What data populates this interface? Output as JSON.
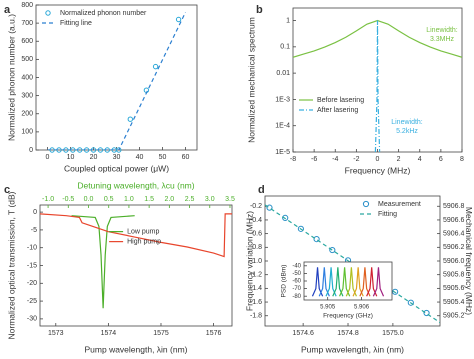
{
  "chart_data": [
    {
      "type": "line",
      "panel": "a",
      "xlabel": "Coupled optical power (μW)",
      "ylabel": "Normalized phonon number (a.u.)",
      "xlim": [
        -5,
        65
      ],
      "xticks": [
        0,
        10,
        20,
        30,
        40,
        50,
        60
      ],
      "ylim": [
        0,
        800
      ],
      "yticks": [
        0,
        100,
        200,
        300,
        400,
        500,
        600,
        700,
        800
      ],
      "legend": "upper left",
      "series": [
        {
          "name": "Normalized phonon number",
          "color": "#29a8d8",
          "style": "markers",
          "x": [
            2,
            5,
            8,
            11,
            14,
            17,
            20,
            23,
            26,
            29,
            31,
            36,
            43,
            47,
            57
          ],
          "values": [
            0,
            0,
            0,
            0,
            0,
            0,
            0,
            0,
            0,
            0,
            0,
            170,
            330,
            460,
            720
          ]
        },
        {
          "name": "Fitting line",
          "color": "#2b7fd0",
          "style": "dashed",
          "x": [
            0,
            31,
            60
          ],
          "values": [
            0,
            0,
            760
          ]
        }
      ]
    },
    {
      "type": "line",
      "panel": "b",
      "xlabel": "Frequency (MHz)",
      "ylabel": "Normalized mechanical spectrum",
      "yscale": "log",
      "xlim": [
        -8,
        8
      ],
      "xticks": [
        -8,
        -6,
        -4,
        -2,
        0,
        2,
        4,
        6,
        8
      ],
      "ylim": [
        1e-05,
        3
      ],
      "yticks": [
        1,
        0.1,
        0.01,
        {
          "value": 0.001,
          "label": "1E-3"
        },
        {
          "value": 0.0001,
          "label": "1E-4"
        },
        {
          "value": 1e-05,
          "label": "1E-5"
        }
      ],
      "legend": "lower left",
      "annotations": [
        [
          "Linewidth:",
          "3.3MHz"
        ],
        [
          "Linewidth:",
          "5.2kHz"
        ]
      ],
      "series": [
        {
          "name": "Before lasering",
          "color": "#7ac143",
          "style": "solid",
          "x": [
            -8,
            -7,
            -6,
            -5,
            -4,
            -3,
            -2,
            -1,
            0,
            1,
            2,
            3,
            4,
            5,
            6,
            7,
            8
          ],
          "values": [
            0.04,
            0.053,
            0.07,
            0.098,
            0.145,
            0.232,
            0.405,
            0.73,
            1,
            0.73,
            0.405,
            0.232,
            0.145,
            0.098,
            0.07,
            0.053,
            0.04
          ]
        },
        {
          "name": "After lasering",
          "color": "#3ab0e0",
          "style": "dashdot",
          "x": [
            -0.2,
            -0.05,
            0,
            0.05,
            0.2
          ],
          "values": [
            1e-05,
            0.001,
            1,
            0.001,
            1e-05
          ]
        }
      ]
    },
    {
      "type": "line",
      "panel": "c",
      "xlabel": "Pump wavelength, λin (nm)",
      "ylabel": "Normalized optical transmission, T (dB)",
      "x2label": "Detuning wavelength, λcu (nm)",
      "x2color": "#4caf2a",
      "xlim": [
        1572.7,
        1576.35
      ],
      "xticks": [
        1573,
        1574,
        1575,
        1576
      ],
      "ylim": [
        -32,
        2
      ],
      "yticks": [
        0,
        -5,
        -10,
        -15,
        -20,
        -25,
        -30
      ],
      "x2lim": [
        -1.2,
        3.55
      ],
      "x2ticks": [
        {
          "value": -1,
          "label": "-1.0"
        },
        -0.5,
        {
          "value": 0,
          "label": "0.0"
        },
        0.5,
        {
          "value": 1,
          "label": "1.0"
        },
        1.5,
        {
          "value": 2,
          "label": "2.0"
        },
        2.5,
        {
          "value": 3,
          "label": "3.0"
        },
        3.5
      ],
      "legend": "center",
      "series": [
        {
          "name": "Low pump",
          "color": "#4caf2a",
          "style": "solid",
          "x": [
            1573.3,
            1573.75,
            1573.82,
            1573.86,
            1573.9,
            1573.94,
            1573.98,
            1574.05,
            1574.5
          ],
          "values": [
            -1,
            -1.5,
            -4,
            -12,
            -27,
            -12,
            -4,
            -1.5,
            -1
          ]
        },
        {
          "name": "High pump",
          "color": "#e8452c",
          "style": "solid",
          "x": [
            1572.7,
            1573.2,
            1573.45,
            1573.5,
            1573.6,
            1574,
            1574.5,
            1575,
            1575.5,
            1576,
            1576.2,
            1576.22,
            1576.35
          ],
          "values": [
            -0.5,
            -1,
            -1.5,
            -3,
            -3.5,
            -5.5,
            -7,
            -8.5,
            -9.8,
            -11.5,
            -12.5,
            -0.5,
            -0.5
          ]
        }
      ]
    },
    {
      "type": "line",
      "panel": "d",
      "xlabel": "Pump wavelength, λin (nm)",
      "ylabel": "Frequency variation (MHz)",
      "y2label": "Mechanical frequency (MHz)",
      "xlim": [
        1574.43,
        1575.21
      ],
      "xticks": [
        1574.6,
        1574.8,
        {
          "value": 1575,
          "label": "1575.0"
        }
      ],
      "ylim": [
        -1.95,
        -0.05
      ],
      "yticks": [
        -0.2,
        -0.4,
        -0.6,
        -0.8,
        {
          "value": -1,
          "label": "-1.0"
        },
        -1.2,
        -1.4,
        -1.6,
        -1.8
      ],
      "y2lim": [
        5905.05,
        5906.95
      ],
      "y2ticks": [
        5906.8,
        5906.6,
        5906.4,
        5906.2,
        {
          "value": 5906,
          "label": "5906.0"
        },
        5905.8,
        5905.6,
        5905.4,
        5905.2
      ],
      "legend": "upper right",
      "series": [
        {
          "name": "Measurement",
          "color": "#2a8fc8",
          "style": "markers",
          "x": [
            1574.45,
            1574.52,
            1574.59,
            1574.66,
            1574.73,
            1574.8,
            1574.87,
            1574.94,
            1575.01,
            1575.08,
            1575.15
          ],
          "values": [
            -0.22,
            -0.37,
            -0.53,
            -0.68,
            -0.84,
            -0.99,
            -1.14,
            -1.3,
            -1.45,
            -1.61,
            -1.76
          ]
        },
        {
          "name": "Fitting",
          "color": "#2aa8a0",
          "style": "dashed",
          "x": [
            1574.43,
            1575.21
          ],
          "values": [
            -0.18,
            -1.9
          ]
        }
      ],
      "inset": {
        "type": "line",
        "xlabel": "Frequency (GHz)",
        "ylabel": "PSD (dBm)",
        "xlim": [
          5.9043,
          5.9069
        ],
        "xticks": [
          5.905,
          5.906
        ],
        "ylim": [
          -85,
          -35
        ],
        "yticks": [
          -40,
          -50,
          -60,
          -70,
          -80
        ],
        "series": [
          {
            "color": "#1f3fbf",
            "style": "solid",
            "x": [
              5.90455,
              5.90465,
              5.9047,
              5.90475,
              5.90485
            ],
            "values": [
              -80,
              -70,
              -42,
              -70,
              -80
            ]
          },
          {
            "color": "#2f7fe0",
            "style": "solid",
            "x": [
              5.90475,
              5.90485,
              5.9049,
              5.90495,
              5.90505
            ],
            "values": [
              -80,
              -70,
              -42,
              -70,
              -80
            ]
          },
          {
            "color": "#20b0d0",
            "style": "solid",
            "x": [
              5.90495,
              5.90505,
              5.9051,
              5.90515,
              5.90525
            ],
            "values": [
              -80,
              -70,
              -42,
              -70,
              -80
            ]
          },
          {
            "color": "#20b070",
            "style": "solid",
            "x": [
              5.90515,
              5.90525,
              5.9053,
              5.90535,
              5.90545
            ],
            "values": [
              -80,
              -70,
              -42,
              -70,
              -80
            ]
          },
          {
            "color": "#60c030",
            "style": "solid",
            "x": [
              5.90535,
              5.90545,
              5.9055,
              5.90555,
              5.90565
            ],
            "values": [
              -80,
              -70,
              -42,
              -70,
              -80
            ]
          },
          {
            "color": "#b0c020",
            "style": "solid",
            "x": [
              5.90555,
              5.90565,
              5.9057,
              5.90575,
              5.90585
            ],
            "values": [
              -80,
              -70,
              -42,
              -70,
              -80
            ]
          },
          {
            "color": "#e0a020",
            "style": "solid",
            "x": [
              5.90575,
              5.90585,
              5.9059,
              5.90595,
              5.90605
            ],
            "values": [
              -80,
              -70,
              -42,
              -70,
              -80
            ]
          },
          {
            "color": "#e06020",
            "style": "solid",
            "x": [
              5.90595,
              5.90605,
              5.9061,
              5.90615,
              5.90625
            ],
            "values": [
              -80,
              -70,
              -42,
              -70,
              -80
            ]
          },
          {
            "color": "#d02030",
            "style": "solid",
            "x": [
              5.90615,
              5.90625,
              5.9063,
              5.90635,
              5.90645
            ],
            "values": [
              -80,
              -70,
              -42,
              -70,
              -80
            ]
          },
          {
            "color": "#a02080",
            "style": "solid",
            "x": [
              5.90635,
              5.90645,
              5.9065,
              5.90655,
              5.90665
            ],
            "values": [
              -80,
              -70,
              -42,
              -70,
              -80
            ]
          }
        ]
      }
    }
  ]
}
